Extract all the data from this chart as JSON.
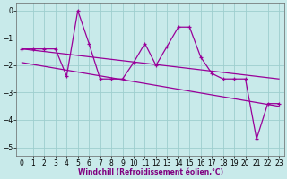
{
  "x": [
    0,
    1,
    2,
    3,
    4,
    5,
    6,
    7,
    8,
    9,
    10,
    11,
    12,
    13,
    14,
    15,
    16,
    17,
    18,
    19,
    20,
    21,
    22,
    23
  ],
  "windchill": [
    -1.4,
    -1.4,
    -1.4,
    -1.4,
    -2.4,
    0.0,
    -1.2,
    -2.5,
    -2.5,
    -2.5,
    -1.9,
    -1.2,
    -2.0,
    -1.3,
    -0.6,
    -0.6,
    -1.7,
    -2.3,
    -2.5,
    -2.5,
    -2.5,
    -4.7,
    -3.4,
    -3.4
  ],
  "trend1_x": [
    0,
    23
  ],
  "trend1_y": [
    -1.4,
    -2.5
  ],
  "trend2_x": [
    0,
    23
  ],
  "trend2_y": [
    -1.9,
    -3.5
  ],
  "line_color": "#990099",
  "bg_color": "#c8eaea",
  "grid_color": "#9dcece",
  "xlabel": "Windchill (Refroidissement éolien,°C)",
  "xlim": [
    -0.5,
    23.5
  ],
  "ylim": [
    -5.3,
    0.3
  ],
  "yticks": [
    0,
    -1,
    -2,
    -3,
    -4,
    -5
  ],
  "xticks": [
    0,
    1,
    2,
    3,
    4,
    5,
    6,
    7,
    8,
    9,
    10,
    11,
    12,
    13,
    14,
    15,
    16,
    17,
    18,
    19,
    20,
    21,
    22,
    23
  ],
  "tick_fontsize": 5.5,
  "xlabel_fontsize": 5.5
}
